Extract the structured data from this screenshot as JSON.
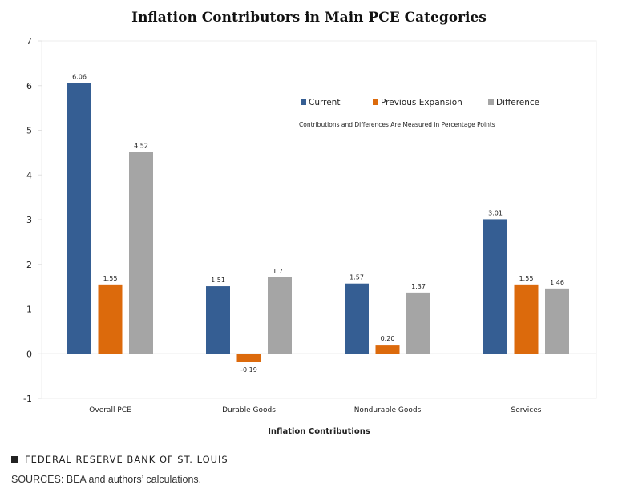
{
  "chart_data": {
    "type": "bar",
    "title": "Inflation Contributors in Main PCE Categories",
    "xlabel": "Inflation Contributions",
    "ylabel": "",
    "ylim": [
      -1,
      7
    ],
    "yticks": [
      -1,
      0,
      1,
      2,
      3,
      4,
      5,
      6,
      7
    ],
    "grid": false,
    "legend_position": "top-right",
    "annotation": "Contributions and Differences Are Measured in Percentage Points",
    "categories": [
      "Overall PCE",
      "Durable Goods",
      "Nondurable Goods",
      "Services"
    ],
    "series": [
      {
        "name": "Current",
        "color": "#355e93",
        "values": [
          6.06,
          1.51,
          1.57,
          3.01
        ],
        "labels": [
          "6.06",
          "1.51",
          "1.57",
          "3.01"
        ]
      },
      {
        "name": "Previous Expansion",
        "color": "#dc6a0c",
        "values": [
          1.55,
          -0.19,
          0.2,
          1.55
        ],
        "labels": [
          "1.55",
          "-0.19",
          "0.20",
          "1.55"
        ]
      },
      {
        "name": "Difference",
        "color": "#a5a5a5",
        "values": [
          4.52,
          1.71,
          1.37,
          1.46
        ],
        "labels": [
          "4.52",
          "1.71",
          "1.37",
          "1.46"
        ]
      }
    ]
  },
  "footer": {
    "brand": "FEDERAL RESERVE BANK OF ST. LOUIS",
    "sources": "SOURCES: BEA and authors’ calculations."
  }
}
